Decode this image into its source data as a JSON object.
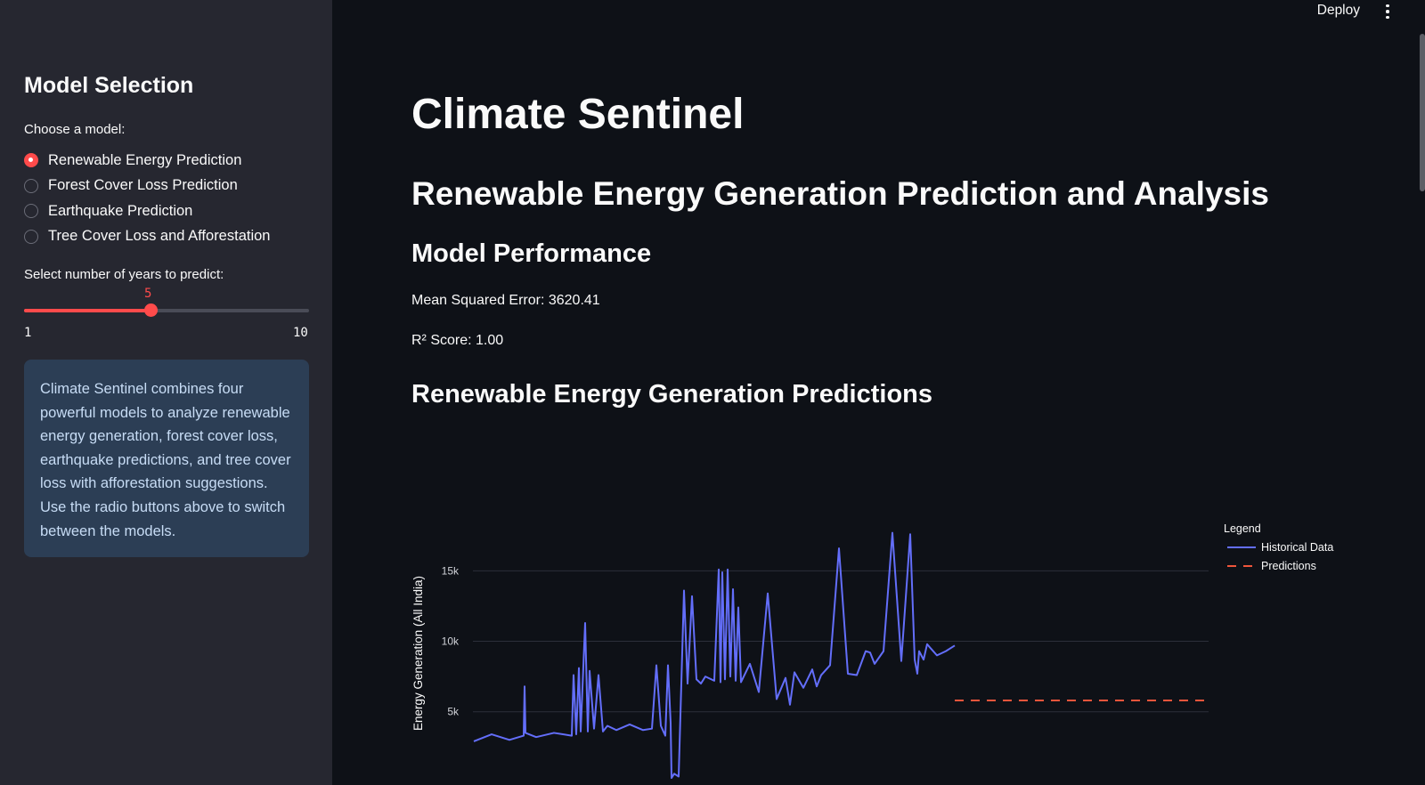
{
  "header": {
    "deploy_label": "Deploy"
  },
  "sidebar": {
    "title": "Model Selection",
    "radio_label": "Choose a model:",
    "options": [
      "Renewable Energy Prediction",
      "Forest Cover Loss Prediction",
      "Earthquake Prediction",
      "Tree Cover Loss and Afforestation"
    ],
    "selected_option": "Renewable Energy Prediction",
    "slider": {
      "label": "Select number of years to predict:",
      "value": "5",
      "min": "1",
      "max": "10",
      "value_fraction": 0.444
    },
    "info": "Climate Sentinel combines four powerful models to analyze renewable energy generation, forest cover loss, earthquake predictions, and tree cover loss with afforestation suggestions. Use the radio buttons above to switch between the models."
  },
  "main": {
    "title": "Climate Sentinel",
    "subtitle": "Renewable Energy Generation Prediction and Analysis",
    "performance_heading": "Model Performance",
    "mse": "Mean Squared Error: 3620.41",
    "r2": "R² Score: 1.00",
    "chart_heading": "Renewable Energy Generation Predictions"
  },
  "colors": {
    "accent": "#ff4b4b",
    "historical": "#636efa",
    "predictions": "#ef553b",
    "info_bg": "#2c3e55"
  },
  "chart_data": {
    "type": "line",
    "xlabel": "",
    "ylabel": "Energy Generation (All India)",
    "y_ticks": [
      "5k",
      "10k",
      "15k"
    ],
    "y_tick_values": [
      5000,
      10000,
      15000
    ],
    "ylim": [
      -200,
      18500
    ],
    "legend_title": "Legend",
    "legend_position": "top-right",
    "grid": true,
    "series": [
      {
        "name": "Historical Data",
        "style": "solid",
        "x": [
          0,
          20,
          40,
          56,
          57,
          58,
          70,
          90,
          100,
          110,
          112,
          115,
          118,
          120,
          125,
          128,
          130,
          135,
          140,
          145,
          150,
          160,
          175,
          190,
          200,
          205,
          210,
          215,
          218,
          221,
          222,
          225,
          230,
          236,
          240,
          245,
          250,
          255,
          260,
          270,
          275,
          277,
          279,
          282,
          285,
          288,
          291,
          294,
          297,
          300,
          310,
          320,
          330,
          340,
          350,
          355,
          360,
          370,
          380,
          385,
          390,
          400,
          410,
          420,
          430,
          440,
          445,
          450,
          460,
          470,
          480,
          490,
          495,
          498,
          500,
          505,
          509,
          513,
          520,
          530,
          540
        ],
        "y": [
          2900,
          3400,
          3000,
          3300,
          6800,
          3500,
          3200,
          3500,
          3400,
          3300,
          7600,
          3400,
          8100,
          3600,
          11300,
          3600,
          7900,
          3800,
          7600,
          3600,
          4000,
          3700,
          4100,
          3700,
          3800,
          8300,
          4000,
          3300,
          8300,
          4200,
          300,
          600,
          400,
          13600,
          7000,
          13200,
          7300,
          7000,
          7500,
          7200,
          15100,
          7100,
          14900,
          7300,
          15100,
          7500,
          13700,
          7200,
          12400,
          7100,
          8400,
          6400,
          13400,
          5900,
          7400,
          5500,
          7800,
          6700,
          8000,
          6800,
          7600,
          8300,
          16600,
          7700,
          7600,
          9300,
          9200,
          8400,
          9300,
          17700,
          8600,
          17600,
          8700,
          7700,
          9300,
          8700,
          9800,
          9500,
          9000,
          9300,
          9700
        ]
      },
      {
        "name": "Predictions",
        "style": "dash",
        "x": [
          540,
          820
        ],
        "y": [
          5800,
          5800
        ]
      }
    ]
  }
}
